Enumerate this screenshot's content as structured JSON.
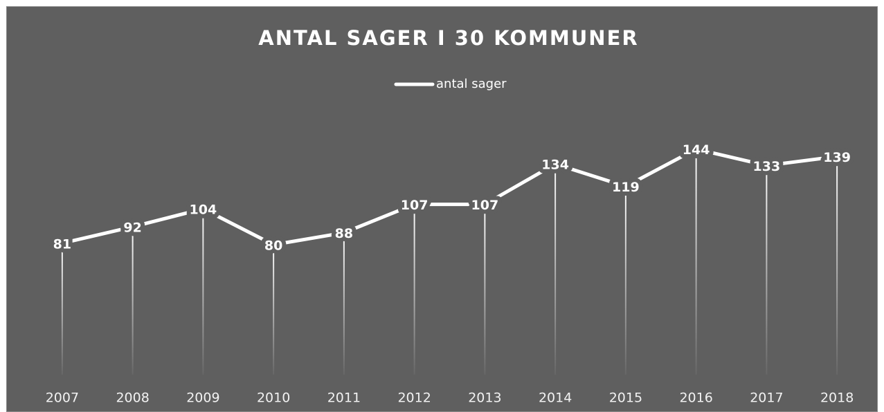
{
  "chart_data": {
    "type": "line",
    "title": "ANTAL SAGER I 30 KOMMUNER",
    "categories": [
      "2007",
      "2008",
      "2009",
      "2010",
      "2011",
      "2012",
      "2013",
      "2014",
      "2015",
      "2016",
      "2017",
      "2018"
    ],
    "series": [
      {
        "name": "antal sager",
        "color": "#ffffff",
        "values": [
          81,
          92,
          104,
          80,
          88,
          107,
          107,
          134,
          119,
          144,
          133,
          139
        ]
      }
    ],
    "ylim": [
      0,
      160
    ],
    "drop_lines": true,
    "legend": "top"
  }
}
